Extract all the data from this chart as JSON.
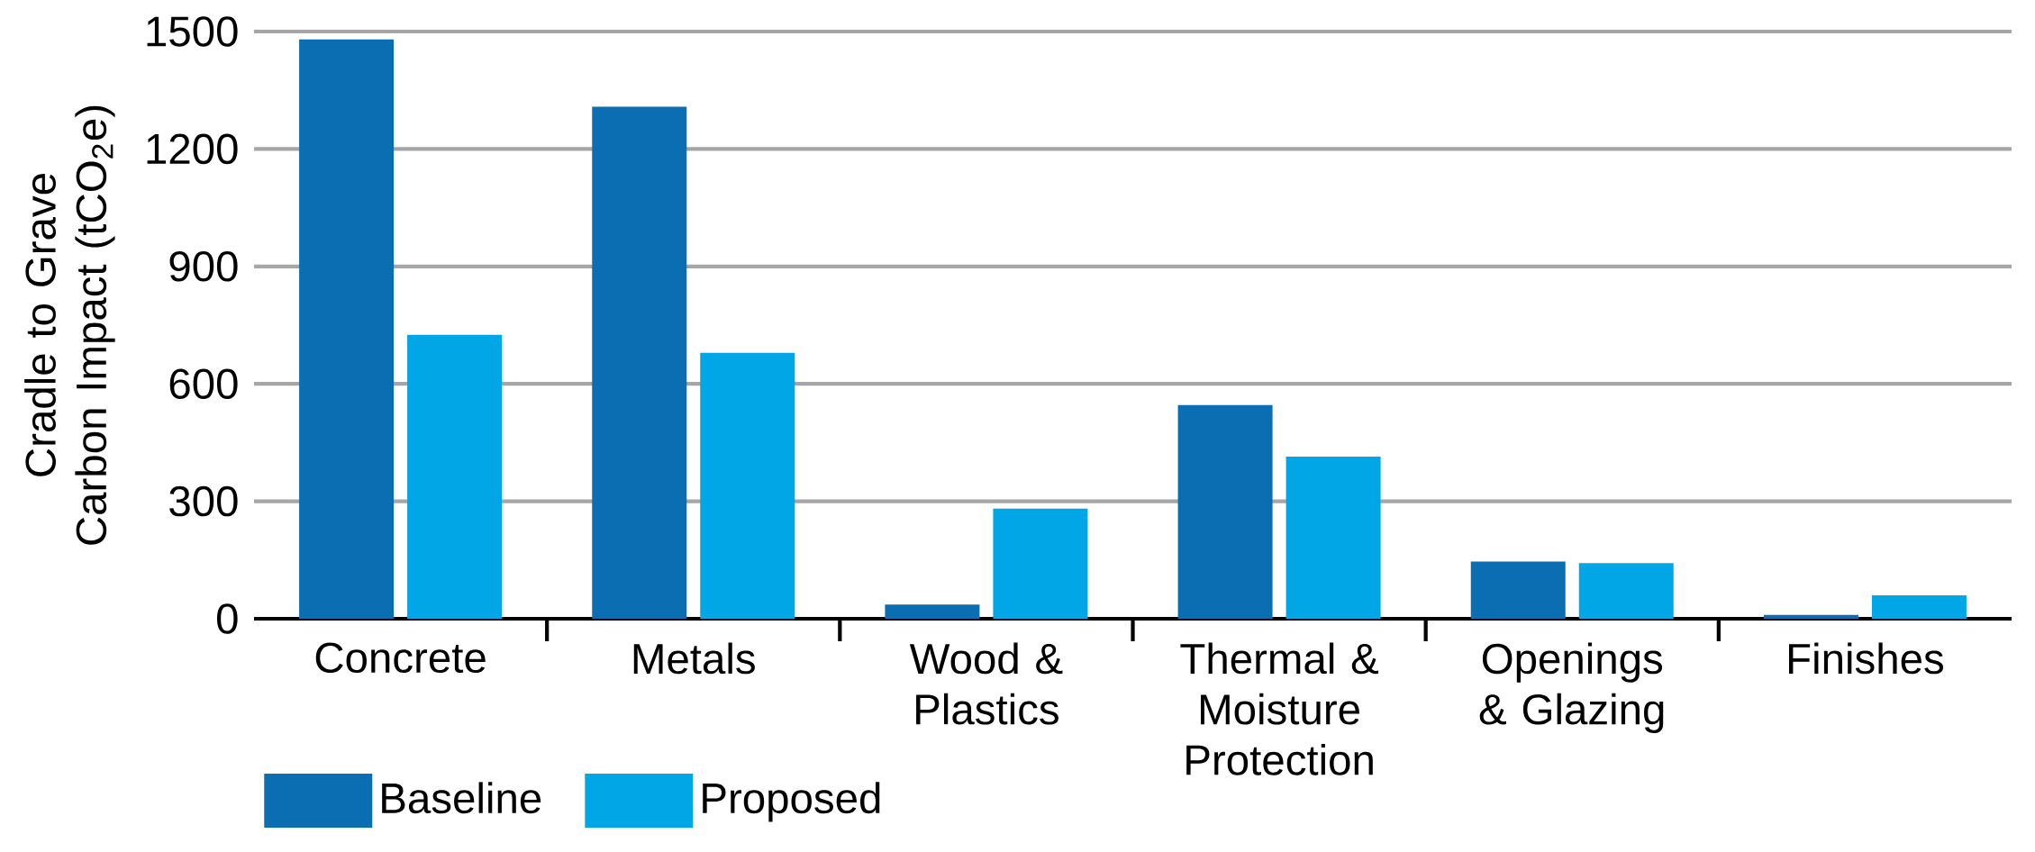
{
  "chart_data": {
    "type": "bar",
    "ylabel": "Cradle to Grave Carbon Impact (tCO$_{2}$e)",
    "categories": [
      "Concrete",
      "Metals",
      "Wood & Plastics",
      "Thermal & Moisture Protection",
      "Openings & Glazing",
      "Finishes"
    ],
    "series": [
      {
        "name": "Baseline",
        "color": "#0c6eb2",
        "values": [
          1480,
          1308,
          36,
          546,
          146,
          10
        ]
      },
      {
        "name": "Proposed",
        "color": "#00a6e6",
        "values": [
          725,
          679,
          281,
          414,
          142,
          60
        ]
      }
    ],
    "ylim": [
      0,
      1500
    ],
    "yticks": [
      0,
      300,
      600,
      900,
      1200,
      1500
    ],
    "grid": "y",
    "legend": "bottom left"
  }
}
